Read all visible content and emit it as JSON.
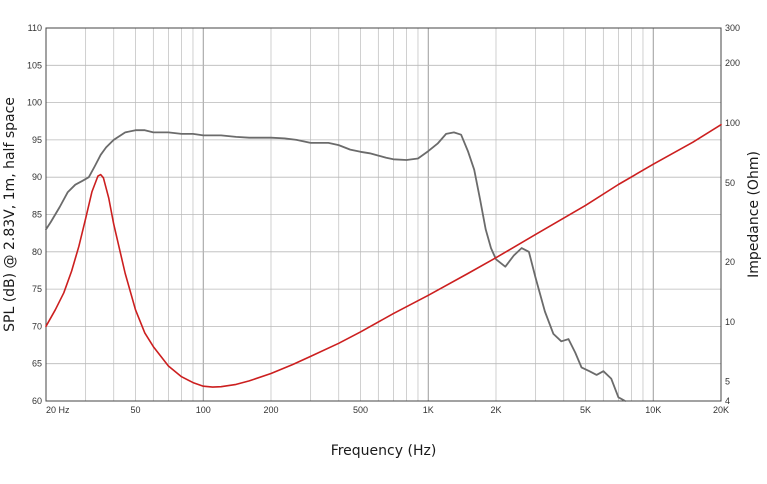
{
  "chart_data": {
    "type": "line",
    "xlabel": "Frequency (Hz)",
    "ylabel": "SPL (dB) @ 2.83V, 1m, half space",
    "y2label": "Impedance (Ohm)",
    "x_scale": "log",
    "xlim": [
      20,
      20000
    ],
    "ylim": [
      60,
      110
    ],
    "y2lim": [
      4,
      300
    ],
    "y2_scale": "log",
    "grid": true,
    "x_ticks": [
      {
        "value": 20,
        "label": "20  Hz"
      },
      {
        "value": 50,
        "label": "50"
      },
      {
        "value": 100,
        "label": "100"
      },
      {
        "value": 200,
        "label": "200"
      },
      {
        "value": 500,
        "label": "500"
      },
      {
        "value": 1000,
        "label": "1K"
      },
      {
        "value": 2000,
        "label": "2K"
      },
      {
        "value": 5000,
        "label": "5K"
      },
      {
        "value": 10000,
        "label": "10K"
      },
      {
        "value": 20000,
        "label": "20K"
      }
    ],
    "y_ticks": [
      60,
      65,
      70,
      75,
      80,
      85,
      90,
      95,
      100,
      105,
      110
    ],
    "y2_ticks": [
      {
        "value": 4,
        "label": "4"
      },
      {
        "value": 5,
        "label": "5"
      },
      {
        "value": 10,
        "label": "10"
      },
      {
        "value": 20,
        "label": "20"
      },
      {
        "value": 50,
        "label": "50"
      },
      {
        "value": 100,
        "label": "100"
      },
      {
        "value": 200,
        "label": "200"
      },
      {
        "value": 300,
        "label": "300"
      }
    ],
    "series": [
      {
        "color": "#6b6b6b",
        "axis": "left",
        "x": [
          20,
          21,
          23,
          25,
          27,
          29,
          31,
          33,
          35,
          37,
          40,
          45,
          50,
          55,
          60,
          70,
          80,
          90,
          100,
          110,
          120,
          140,
          160,
          180,
          200,
          230,
          260,
          300,
          330,
          360,
          400,
          450,
          500,
          550,
          600,
          650,
          700,
          800,
          900,
          1000,
          1100,
          1200,
          1300,
          1400,
          1500,
          1600,
          1700,
          1800,
          1900,
          2000,
          2200,
          2400,
          2600,
          2800,
          3000,
          3300,
          3600,
          3900,
          4200,
          4500,
          4800,
          5200,
          5600,
          6000,
          6500,
          7000,
          7500
        ],
        "values": [
          83,
          84,
          86,
          88,
          89,
          89.5,
          90,
          91.5,
          93,
          94,
          95,
          96,
          96.3,
          96.3,
          96,
          96,
          95.8,
          95.8,
          95.6,
          95.6,
          95.6,
          95.4,
          95.3,
          95.3,
          95.3,
          95.2,
          95.0,
          94.6,
          94.6,
          94.6,
          94.3,
          93.7,
          93.4,
          93.2,
          92.9,
          92.6,
          92.4,
          92.3,
          92.5,
          93.5,
          94.5,
          95.8,
          96.0,
          95.7,
          93.5,
          91.0,
          87.0,
          83.0,
          80.5,
          79.0,
          78.0,
          79.5,
          80.5,
          80.0,
          76.5,
          72.0,
          69.0,
          68.0,
          68.3,
          66.5,
          64.5,
          64.0,
          63.5,
          64.0,
          63.0,
          60.5,
          60.0
        ]
      },
      {
        "color": "#cc1f1f",
        "axis": "right",
        "x": [
          20,
          22,
          24,
          26,
          28,
          30,
          32,
          34,
          35,
          36,
          38,
          40,
          45,
          50,
          55,
          60,
          70,
          80,
          90,
          100,
          110,
          120,
          140,
          160,
          200,
          250,
          300,
          400,
          500,
          700,
          1000,
          1500,
          2000,
          3000,
          5000,
          7000,
          10000,
          15000,
          20000
        ],
        "values": [
          9.5,
          11.5,
          14,
          18,
          24,
          33,
          45,
          54,
          55,
          53,
          42,
          31,
          17.5,
          11.5,
          8.8,
          7.5,
          6.0,
          5.3,
          4.95,
          4.75,
          4.7,
          4.72,
          4.85,
          5.05,
          5.5,
          6.1,
          6.7,
          7.8,
          8.9,
          11.0,
          13.6,
          17.5,
          21.0,
          27.5,
          38.5,
          49.0,
          62.0,
          80.0,
          98.0
        ]
      }
    ]
  }
}
